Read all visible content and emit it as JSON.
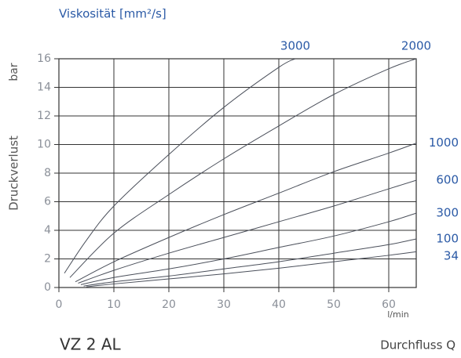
{
  "chart_data": {
    "type": "line",
    "title": "Viskosität [mm²/s]",
    "y_label": "Druckverlust",
    "y_unit": "bar",
    "x_unit": "l/min",
    "x_label": "Durchfluss Q",
    "model": "VZ 2 AL",
    "xlim": [
      0,
      65
    ],
    "xticks": [
      0,
      10,
      20,
      30,
      40,
      50,
      60
    ],
    "ylim": [
      0,
      16
    ],
    "yticks": [
      0,
      2,
      4,
      6,
      8,
      10,
      12,
      14,
      16
    ],
    "grid": true,
    "series": [
      {
        "name": "3000",
        "color": "#4a4f5a",
        "x": [
          1,
          5,
          10,
          20,
          30,
          40,
          43
        ],
        "values": [
          1,
          3.3,
          5.7,
          9.3,
          12.6,
          15.4,
          16
        ]
      },
      {
        "name": "2000",
        "color": "#4a4f5a",
        "x": [
          2,
          10,
          20,
          30,
          40,
          50,
          60,
          65
        ],
        "values": [
          0.7,
          3.8,
          6.5,
          9,
          11.3,
          13.5,
          15.3,
          16
        ]
      },
      {
        "name": "1000",
        "color": "#4a4f5a",
        "x": [
          3,
          10,
          20,
          30,
          40,
          50,
          60,
          65
        ],
        "values": [
          0.4,
          1.8,
          3.5,
          5.1,
          6.6,
          8.1,
          9.4,
          10.1
        ]
      },
      {
        "name": "600",
        "color": "#4a4f5a",
        "x": [
          3.5,
          10,
          20,
          30,
          40,
          50,
          60,
          65
        ],
        "values": [
          0.3,
          1.2,
          2.4,
          3.5,
          4.6,
          5.7,
          6.9,
          7.5
        ]
      },
      {
        "name": "300",
        "color": "#4a4f5a",
        "x": [
          4,
          10,
          20,
          30,
          40,
          50,
          60,
          65
        ],
        "values": [
          0.2,
          0.7,
          1.3,
          2,
          2.8,
          3.6,
          4.6,
          5.2
        ]
      },
      {
        "name": "100",
        "color": "#4a4f5a",
        "x": [
          4.5,
          10,
          20,
          30,
          40,
          50,
          60,
          65
        ],
        "values": [
          0.1,
          0.4,
          0.8,
          1.3,
          1.8,
          2.4,
          3,
          3.4
        ]
      },
      {
        "name": "34",
        "color": "#4a4f5a",
        "x": [
          5,
          10,
          20,
          30,
          40,
          50,
          60,
          65
        ],
        "values": [
          0.05,
          0.25,
          0.6,
          0.95,
          1.35,
          1.8,
          2.25,
          2.5
        ]
      }
    ]
  }
}
